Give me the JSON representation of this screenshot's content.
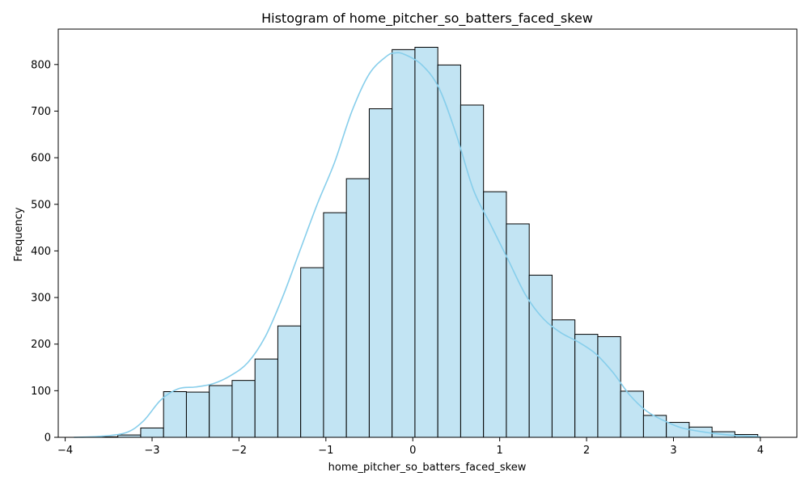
{
  "chart_data": {
    "type": "bar",
    "title": "Histogram of home_pitcher_so_batters_faced_skew",
    "xlabel": "home_pitcher_so_batters_faced_skew",
    "ylabel": "Frequency",
    "xlim": [
      -4.08,
      4.42
    ],
    "ylim": [
      0,
      876
    ],
    "x_ticks": [
      -4,
      -3,
      -2,
      -1,
      0,
      1,
      2,
      3,
      4
    ],
    "y_ticks": [
      0,
      100,
      200,
      300,
      400,
      500,
      600,
      700,
      800
    ],
    "bins": {
      "start": -3.92,
      "width": 0.263,
      "counts": [
        0,
        1,
        5,
        20,
        98,
        97,
        111,
        122,
        168,
        239,
        364,
        482,
        555,
        705,
        832,
        837,
        799,
        713,
        527,
        458,
        348,
        252,
        221,
        216,
        99,
        47,
        32,
        22,
        12,
        6
      ]
    },
    "kde": {
      "x": [
        -3.9,
        -3.6,
        -3.3,
        -3.1,
        -2.9,
        -2.7,
        -2.5,
        -2.3,
        -2.1,
        -1.9,
        -1.7,
        -1.5,
        -1.3,
        -1.1,
        -0.9,
        -0.7,
        -0.5,
        -0.3,
        -0.2,
        -0.1,
        0.1,
        0.3,
        0.5,
        0.7,
        0.9,
        1.1,
        1.3,
        1.5,
        1.7,
        1.9,
        2.1,
        2.3,
        2.5,
        2.7,
        2.9,
        3.1,
        3.4,
        3.7,
        4.0
      ],
      "y": [
        0,
        2,
        10,
        35,
        80,
        104,
        108,
        115,
        132,
        160,
        215,
        300,
        400,
        500,
        590,
        700,
        780,
        818,
        825,
        822,
        800,
        750,
        650,
        530,
        455,
        380,
        305,
        255,
        225,
        205,
        180,
        140,
        90,
        55,
        35,
        20,
        10,
        4,
        1
      ]
    },
    "bar_color": "#c2e4f3",
    "bar_edge_color": "#000000",
    "kde_color": "#87ceeb",
    "grid": false,
    "legend": "none"
  }
}
